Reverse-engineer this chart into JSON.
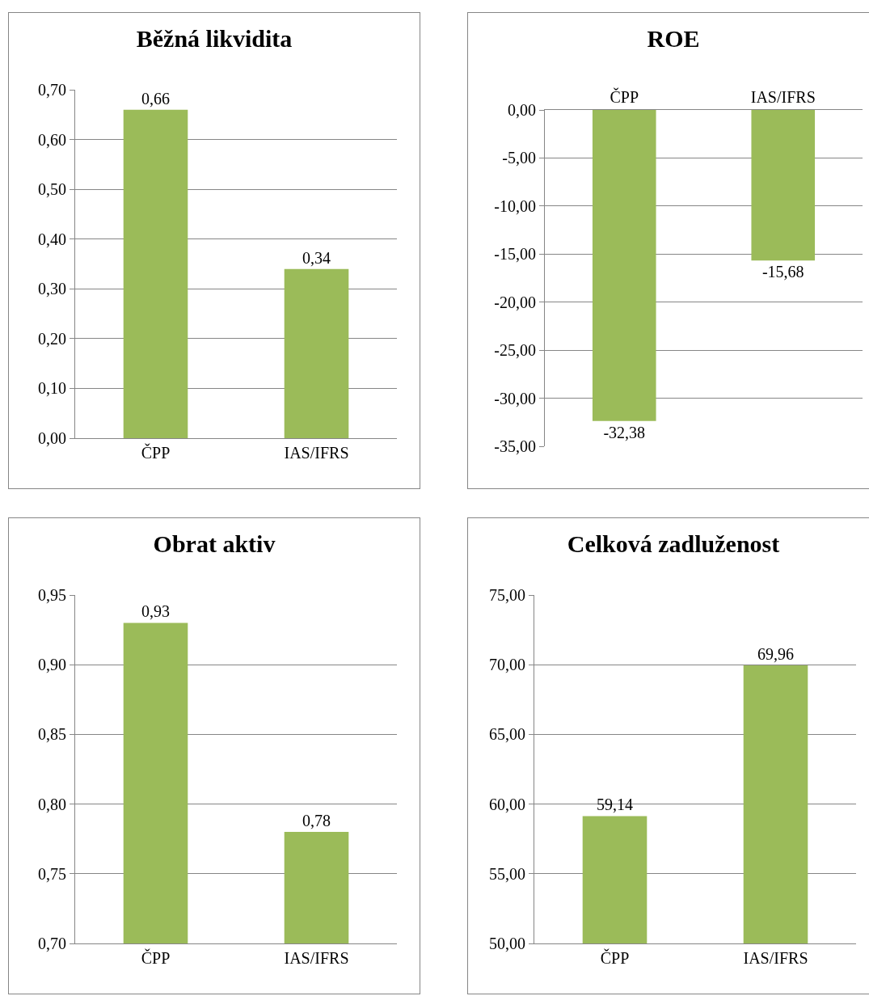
{
  "chart_data": [
    {
      "type": "bar",
      "title": "Běžná likvidita",
      "categories": [
        "ČPP",
        "IAS/IFRS"
      ],
      "values": [
        0.66,
        0.34
      ],
      "value_labels": [
        "0,66",
        "0,34"
      ],
      "color": "#9bbb59",
      "ylim": [
        0,
        0.7
      ],
      "yticks": [
        {
          "value": 0,
          "label": "0,00"
        },
        {
          "value": 0.1,
          "label": "0,10"
        },
        {
          "value": 0.2,
          "label": "0,20"
        },
        {
          "value": 0.3,
          "label": "0,30"
        },
        {
          "value": 0.4,
          "label": "0,40"
        },
        {
          "value": 0.5,
          "label": "0,50"
        },
        {
          "value": 0.6,
          "label": "0,60"
        },
        {
          "value": 0.7,
          "label": "0,70"
        }
      ],
      "grid": "y"
    },
    {
      "type": "bar",
      "title": "ROE",
      "categories": [
        "ČPP",
        "IAS/IFRS"
      ],
      "values": [
        -32.38,
        -15.68
      ],
      "value_labels": [
        "-32,38",
        "-15,68"
      ],
      "color": "#9bbb59",
      "ylim": [
        -35,
        0
      ],
      "yticks": [
        {
          "value": -35,
          "label": "-35,00"
        },
        {
          "value": -30,
          "label": "-30,00"
        },
        {
          "value": -25,
          "label": "-25,00"
        },
        {
          "value": -20,
          "label": "-20,00"
        },
        {
          "value": -15,
          "label": "-15,00"
        },
        {
          "value": -10,
          "label": "-10,00"
        },
        {
          "value": -5,
          "label": "-5,00"
        },
        {
          "value": 0,
          "label": "0,00"
        }
      ],
      "grid": "y"
    },
    {
      "type": "bar",
      "title": "Obrat aktiv",
      "categories": [
        "ČPP",
        "IAS/IFRS"
      ],
      "values": [
        0.93,
        0.78
      ],
      "value_labels": [
        "0,93",
        "0,78"
      ],
      "color": "#9bbb59",
      "ylim": [
        0.7,
        0.95
      ],
      "yticks": [
        {
          "value": 0.7,
          "label": "0,70"
        },
        {
          "value": 0.75,
          "label": "0,75"
        },
        {
          "value": 0.8,
          "label": "0,80"
        },
        {
          "value": 0.85,
          "label": "0,85"
        },
        {
          "value": 0.9,
          "label": "0,90"
        },
        {
          "value": 0.95,
          "label": "0,95"
        }
      ],
      "grid": "y"
    },
    {
      "type": "bar",
      "title": "Celková zadluženost",
      "categories": [
        "ČPP",
        "IAS/IFRS"
      ],
      "values": [
        59.14,
        69.96
      ],
      "value_labels": [
        "59,14",
        "69,96"
      ],
      "color": "#9bbb59",
      "ylim": [
        50,
        75
      ],
      "yticks": [
        {
          "value": 50,
          "label": "50,00"
        },
        {
          "value": 55,
          "label": "55,00"
        },
        {
          "value": 60,
          "label": "60,00"
        },
        {
          "value": 65,
          "label": "65,00"
        },
        {
          "value": 70,
          "label": "70,00"
        },
        {
          "value": 75,
          "label": "75,00"
        }
      ],
      "grid": "y"
    }
  ]
}
